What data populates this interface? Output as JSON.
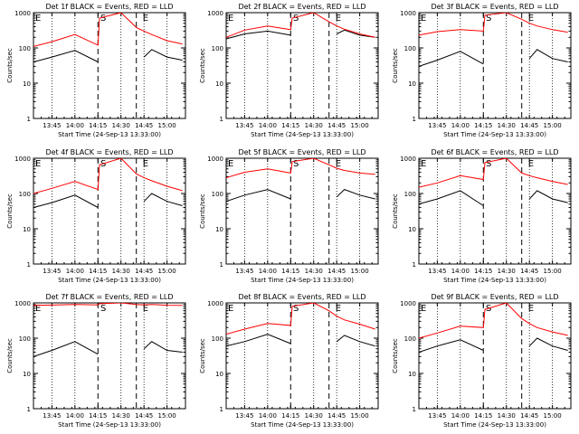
{
  "figure": {
    "common": {
      "ylabel": "Counts/sec",
      "xlabel": "Start Time (24-Sep-13 13:33:00)",
      "yticks": [
        "1",
        "10",
        "100",
        "1000"
      ],
      "xticks": [
        "13:45",
        "14:00",
        "14:15",
        "14:30",
        "14:45",
        "15:00"
      ],
      "series_colors": {
        "events": "#000000",
        "lld": "#ff0000"
      }
    }
  },
  "chart_data": [
    {
      "type": "line",
      "title": "Det 1f BLACK = Events, RED = LLD",
      "markers": {
        "start": "S",
        "end": "E"
      },
      "yscale": "log",
      "ylim": [
        1,
        1000
      ],
      "xlim": [
        "13:33",
        "15:12"
      ],
      "x": [
        "13:33",
        "13:45",
        "14:00",
        "14:15",
        "14:16",
        "14:30",
        "14:40",
        "14:45",
        "14:50",
        "15:00",
        "15:10"
      ],
      "series": [
        {
          "name": "Events",
          "values": [
            40,
            55,
            85,
            40,
            null,
            null,
            null,
            55,
            90,
            55,
            45
          ]
        },
        {
          "name": "LLD",
          "values": [
            110,
            150,
            240,
            120,
            700,
            1000,
            380,
            300,
            240,
            160,
            130
          ]
        }
      ]
    },
    {
      "type": "line",
      "title": "Det 2f BLACK = Events, RED = LLD",
      "markers": {
        "start": "S",
        "end": "E"
      },
      "yscale": "log",
      "ylim": [
        1,
        1000
      ],
      "xlim": [
        "13:33",
        "15:12"
      ],
      "x": [
        "13:33",
        "13:45",
        "14:00",
        "14:15",
        "14:16",
        "14:30",
        "14:40",
        "14:45",
        "14:50",
        "15:00",
        "15:10"
      ],
      "series": [
        {
          "name": "Events",
          "values": [
            180,
            250,
            300,
            230,
            null,
            null,
            null,
            250,
            320,
            230,
            200
          ]
        },
        {
          "name": "LLD",
          "values": [
            200,
            320,
            420,
            330,
            700,
            1000,
            550,
            420,
            340,
            250,
            200
          ]
        }
      ]
    },
    {
      "type": "line",
      "title": "Det 3f BLACK = Events, RED = LLD",
      "markers": {
        "start": "S",
        "end": "E"
      },
      "yscale": "log",
      "ylim": [
        1,
        1000
      ],
      "xlim": [
        "13:33",
        "15:12"
      ],
      "x": [
        "13:33",
        "13:45",
        "14:00",
        "14:15",
        "14:16",
        "14:30",
        "14:40",
        "14:45",
        "14:50",
        "15:00",
        "15:10"
      ],
      "series": [
        {
          "name": "Events",
          "values": [
            30,
            45,
            80,
            35,
            null,
            null,
            null,
            50,
            90,
            50,
            40
          ]
        },
        {
          "name": "LLD",
          "values": [
            230,
            290,
            330,
            300,
            850,
            1000,
            650,
            500,
            420,
            330,
            280
          ]
        }
      ]
    },
    {
      "type": "line",
      "title": "Det 4f BLACK = Events, RED = LLD",
      "markers": {
        "start": "S",
        "end": "E"
      },
      "yscale": "log",
      "ylim": [
        1,
        1000
      ],
      "xlim": [
        "13:33",
        "15:12"
      ],
      "x": [
        "13:33",
        "13:45",
        "14:00",
        "14:15",
        "14:16",
        "14:30",
        "14:40",
        "14:45",
        "14:50",
        "15:00",
        "15:10"
      ],
      "series": [
        {
          "name": "Events",
          "values": [
            40,
            55,
            90,
            40,
            null,
            null,
            null,
            60,
            100,
            60,
            45
          ]
        },
        {
          "name": "LLD",
          "values": [
            100,
            140,
            220,
            130,
            650,
            1000,
            360,
            280,
            230,
            160,
            120
          ]
        }
      ]
    },
    {
      "type": "line",
      "title": "Det 5f BLACK = Events, RED = LLD",
      "markers": {
        "start": "S",
        "end": "E"
      },
      "yscale": "log",
      "ylim": [
        1,
        1000
      ],
      "xlim": [
        "13:33",
        "15:12"
      ],
      "x": [
        "13:33",
        "13:45",
        "14:00",
        "14:15",
        "14:16",
        "14:30",
        "14:40",
        "14:45",
        "14:50",
        "15:00",
        "15:10"
      ],
      "series": [
        {
          "name": "Events",
          "values": [
            60,
            90,
            130,
            70,
            null,
            null,
            null,
            80,
            130,
            90,
            70
          ]
        },
        {
          "name": "LLD",
          "values": [
            280,
            400,
            500,
            380,
            800,
            1000,
            650,
            520,
            450,
            380,
            350
          ]
        }
      ]
    },
    {
      "type": "line",
      "title": "Det 6f BLACK = Events, RED = LLD",
      "markers": {
        "start": "S",
        "end": "E"
      },
      "yscale": "log",
      "ylim": [
        1,
        1000
      ],
      "xlim": [
        "13:33",
        "15:12"
      ],
      "x": [
        "13:33",
        "13:45",
        "14:00",
        "14:15",
        "14:16",
        "14:30",
        "14:40",
        "14:45",
        "14:50",
        "15:00",
        "15:10"
      ],
      "series": [
        {
          "name": "Events",
          "values": [
            50,
            70,
            120,
            45,
            null,
            null,
            null,
            70,
            120,
            70,
            55
          ]
        },
        {
          "name": "LLD",
          "values": [
            150,
            200,
            320,
            250,
            750,
            1000,
            380,
            320,
            280,
            220,
            180
          ]
        }
      ]
    },
    {
      "type": "line",
      "title": "Det 7f BLACK = Events, RED = LLD",
      "markers": {
        "start": "S",
        "end": "E"
      },
      "yscale": "log",
      "ylim": [
        1,
        1000
      ],
      "xlim": [
        "13:33",
        "15:12"
      ],
      "x": [
        "13:33",
        "13:45",
        "14:00",
        "14:15",
        "14:16",
        "14:30",
        "14:40",
        "14:45",
        "14:50",
        "15:00",
        "15:10"
      ],
      "series": [
        {
          "name": "Events",
          "values": [
            30,
            45,
            80,
            35,
            null,
            null,
            null,
            50,
            80,
            45,
            40
          ]
        },
        {
          "name": "LLD",
          "values": [
            850,
            870,
            900,
            880,
            950,
            1000,
            900,
            880,
            900,
            860,
            850
          ]
        }
      ]
    },
    {
      "type": "line",
      "title": "Det 8f BLACK = Events, RED = LLD",
      "markers": {
        "start": "S",
        "end": "E"
      },
      "yscale": "log",
      "ylim": [
        1,
        1000
      ],
      "xlim": [
        "13:33",
        "15:12"
      ],
      "x": [
        "13:33",
        "13:45",
        "14:00",
        "14:15",
        "14:16",
        "14:30",
        "14:40",
        "14:45",
        "14:50",
        "15:00",
        "15:10"
      ],
      "series": [
        {
          "name": "Events",
          "values": [
            60,
            80,
            130,
            70,
            null,
            null,
            null,
            80,
            120,
            80,
            60
          ]
        },
        {
          "name": "LLD",
          "values": [
            130,
            180,
            260,
            230,
            800,
            1000,
            600,
            420,
            330,
            250,
            180
          ]
        }
      ]
    },
    {
      "type": "line",
      "title": "Det 9f BLACK = Events, RED = LLD",
      "markers": {
        "start": "S",
        "end": "E"
      },
      "yscale": "log",
      "ylim": [
        1,
        1000
      ],
      "xlim": [
        "13:33",
        "15:12"
      ],
      "x": [
        "13:33",
        "13:45",
        "14:00",
        "14:15",
        "14:16",
        "14:30",
        "14:40",
        "14:45",
        "14:50",
        "15:00",
        "15:10"
      ],
      "series": [
        {
          "name": "Events",
          "values": [
            40,
            60,
            90,
            45,
            null,
            null,
            null,
            60,
            100,
            60,
            45
          ]
        },
        {
          "name": "LLD",
          "values": [
            100,
            140,
            220,
            200,
            650,
            1000,
            360,
            260,
            200,
            150,
            120
          ]
        }
      ]
    }
  ]
}
